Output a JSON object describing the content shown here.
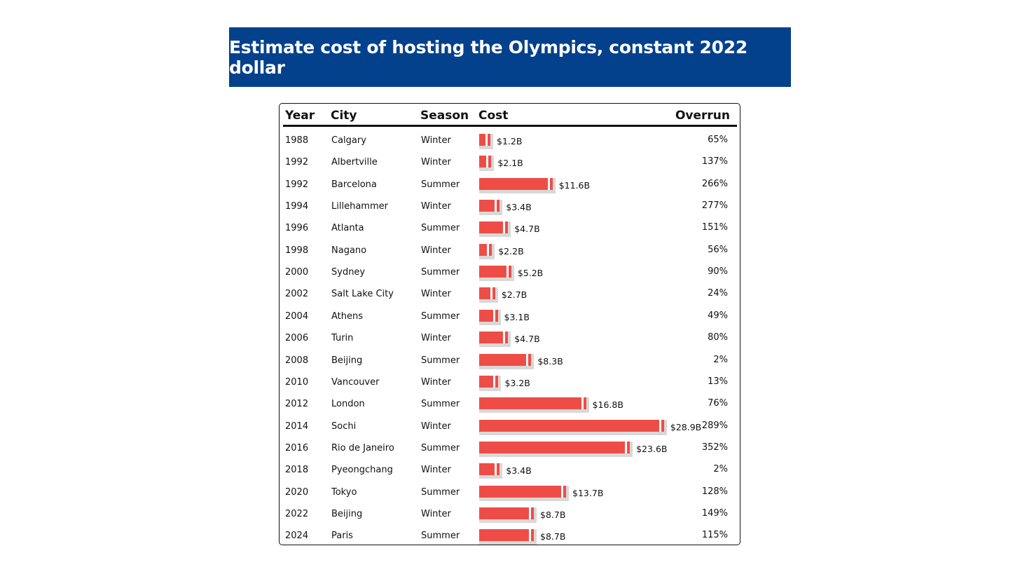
{
  "title": "Estimate cost of hosting the Olympics, constant 2022 dollar",
  "columns": {
    "year": "Year",
    "city": "City",
    "season": "Season",
    "cost": "Cost",
    "overrun": "Overrun"
  },
  "colors": {
    "banner": "#04418c",
    "bar": "#ee4d47",
    "track": "#d8d8d8"
  },
  "chart_data": {
    "type": "table",
    "title": "Estimate cost of hosting the Olympics, constant 2022 dollar",
    "unit": "billion USD (2022)",
    "rows": [
      {
        "year": "1988",
        "city": "Calgary",
        "season": "Winter",
        "cost": 1.2,
        "cost_label": "$1.2B",
        "overrun": "65%"
      },
      {
        "year": "1992",
        "city": "Albertville",
        "season": "Winter",
        "cost": 2.1,
        "cost_label": "$2.1B",
        "overrun": "137%"
      },
      {
        "year": "1992",
        "city": "Barcelona",
        "season": "Summer",
        "cost": 11.6,
        "cost_label": "$11.6B",
        "overrun": "266%"
      },
      {
        "year": "1994",
        "city": "Lillehammer",
        "season": "Winter",
        "cost": 3.4,
        "cost_label": "$3.4B",
        "overrun": "277%"
      },
      {
        "year": "1996",
        "city": "Atlanta",
        "season": "Summer",
        "cost": 4.7,
        "cost_label": "$4.7B",
        "overrun": "151%"
      },
      {
        "year": "1998",
        "city": "Nagano",
        "season": "Winter",
        "cost": 2.2,
        "cost_label": "$2.2B",
        "overrun": "56%"
      },
      {
        "year": "2000",
        "city": "Sydney",
        "season": "Summer",
        "cost": 5.2,
        "cost_label": "$5.2B",
        "overrun": "90%"
      },
      {
        "year": "2002",
        "city": "Salt Lake City",
        "season": "Winter",
        "cost": 2.7,
        "cost_label": "$2.7B",
        "overrun": "24%"
      },
      {
        "year": "2004",
        "city": "Athens",
        "season": "Summer",
        "cost": 3.1,
        "cost_label": "$3.1B",
        "overrun": "49%"
      },
      {
        "year": "2006",
        "city": "Turin",
        "season": "Winter",
        "cost": 4.7,
        "cost_label": "$4.7B",
        "overrun": "80%"
      },
      {
        "year": "2008",
        "city": "Beijing",
        "season": "Summer",
        "cost": 8.3,
        "cost_label": "$8.3B",
        "overrun": "2%"
      },
      {
        "year": "2010",
        "city": "Vancouver",
        "season": "Winter",
        "cost": 3.2,
        "cost_label": "$3.2B",
        "overrun": "13%"
      },
      {
        "year": "2012",
        "city": "London",
        "season": "Summer",
        "cost": 16.8,
        "cost_label": "$16.8B",
        "overrun": "76%"
      },
      {
        "year": "2014",
        "city": "Sochi",
        "season": "Winter",
        "cost": 28.9,
        "cost_label": "$28.9B",
        "overrun": "289%"
      },
      {
        "year": "2016",
        "city": "Rio de Janeiro",
        "season": "Summer",
        "cost": 23.6,
        "cost_label": "$23.6B",
        "overrun": "352%"
      },
      {
        "year": "2018",
        "city": "Pyeongchang",
        "season": "Winter",
        "cost": 3.4,
        "cost_label": "$3.4B",
        "overrun": "2%"
      },
      {
        "year": "2020",
        "city": "Tokyo",
        "season": "Summer",
        "cost": 13.7,
        "cost_label": "$13.7B",
        "overrun": "128%"
      },
      {
        "year": "2022",
        "city": "Beijing",
        "season": "Winter",
        "cost": 8.7,
        "cost_label": "$8.7B",
        "overrun": "149%"
      },
      {
        "year": "2024",
        "city": "Paris",
        "season": "Summer",
        "cost": 8.7,
        "cost_label": "$8.7B",
        "overrun": "115%"
      }
    ]
  }
}
